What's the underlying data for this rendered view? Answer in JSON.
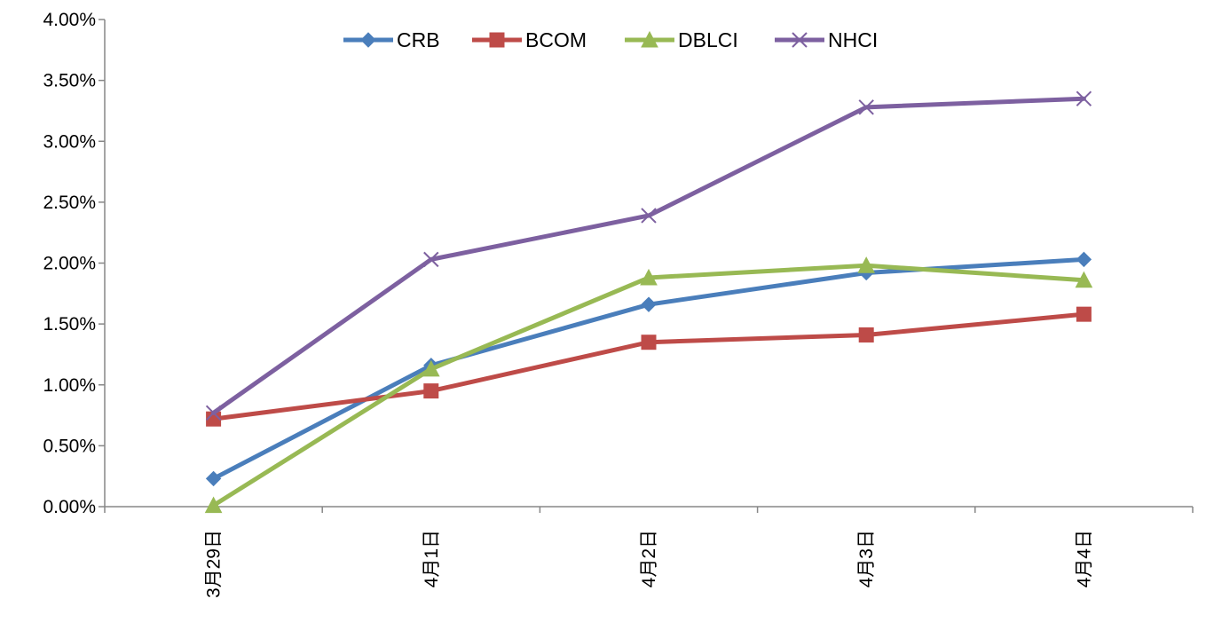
{
  "chart_data": {
    "type": "line",
    "title": "",
    "xlabel": "",
    "ylabel": "",
    "categories": [
      "3月29日",
      "4月1日",
      "4月2日",
      "4月3日",
      "4月4日"
    ],
    "ylim": [
      0,
      0.04
    ],
    "yticks": [
      {
        "value": 0.0,
        "label": "0.00%"
      },
      {
        "value": 0.005,
        "label": "0.50%"
      },
      {
        "value": 0.01,
        "label": "1.00%"
      },
      {
        "value": 0.015,
        "label": "1.50%"
      },
      {
        "value": 0.02,
        "label": "2.00%"
      },
      {
        "value": 0.025,
        "label": "2.50%"
      },
      {
        "value": 0.03,
        "label": "3.00%"
      },
      {
        "value": 0.035,
        "label": "3.50%"
      },
      {
        "value": 0.04,
        "label": "4.00%"
      }
    ],
    "grid": false,
    "legend_position": "top-center",
    "series": [
      {
        "name": "CRB",
        "color": "#4a7ebb",
        "marker": "diamond",
        "values": [
          0.0023,
          0.0116,
          0.0166,
          0.0192,
          0.0203
        ]
      },
      {
        "name": "BCOM",
        "color": "#be4b48",
        "marker": "square",
        "values": [
          0.0072,
          0.0095,
          0.0135,
          0.0141,
          0.0158
        ]
      },
      {
        "name": "DBLCI",
        "color": "#98b954",
        "marker": "triangle",
        "values": [
          0.0001,
          0.0113,
          0.0188,
          0.0198,
          0.0186
        ]
      },
      {
        "name": "NHCI",
        "color": "#7d60a0",
        "marker": "x",
        "values": [
          0.0077,
          0.0203,
          0.0239,
          0.0328,
          0.0335
        ]
      }
    ]
  }
}
